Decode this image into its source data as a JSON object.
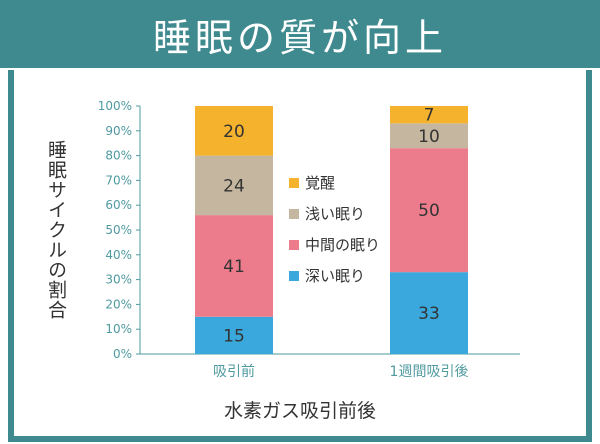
{
  "title": "睡眠の質が向上",
  "colors": {
    "banner": "#3f8a8f",
    "axis": "#4f9aa0",
    "grid": "#cfe2e3",
    "series": [
      "#3aa8dc",
      "#ec7c8b",
      "#c5b79f",
      "#f5b22d"
    ]
  },
  "chart_data": {
    "type": "bar",
    "stacked": true,
    "title": "睡眠の質が向上",
    "xlabel": "水素ガス吸引前後",
    "ylabel": "睡眠サイクルの割合",
    "ylim": [
      0,
      100
    ],
    "yticks": [
      "0%",
      "10%",
      "20%",
      "30%",
      "40%",
      "50%",
      "60%",
      "70%",
      "80%",
      "90%",
      "100%"
    ],
    "categories": [
      "吸引前",
      "1週間吸引後"
    ],
    "series": [
      {
        "name": "深い眠り",
        "values": [
          15,
          33
        ]
      },
      {
        "name": "中間の眠り",
        "values": [
          41,
          50
        ]
      },
      {
        "name": "浅い眠り",
        "values": [
          24,
          10
        ]
      },
      {
        "name": "覚醒",
        "values": [
          20,
          7
        ]
      }
    ],
    "legend": [
      "覚醒",
      "浅い眠り",
      "中間の眠り",
      "深い眠り"
    ],
    "legend_position": "center",
    "grid": false
  }
}
